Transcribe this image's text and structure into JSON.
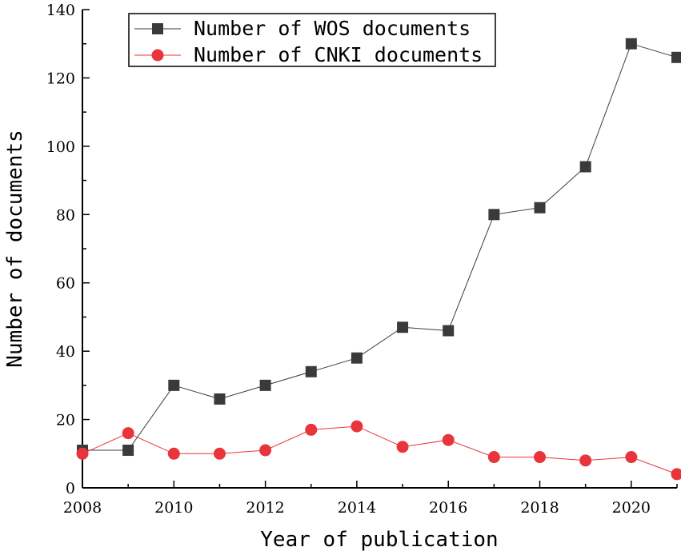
{
  "chart_data": {
    "type": "line",
    "title": "",
    "xlabel": "Year of publication",
    "ylabel": "Number of documents",
    "xlim": [
      2008,
      2021
    ],
    "ylim": [
      0,
      140
    ],
    "x_ticks": [
      2008,
      2010,
      2012,
      2014,
      2016,
      2018,
      2020
    ],
    "y_ticks": [
      0,
      20,
      40,
      60,
      80,
      100,
      120,
      140
    ],
    "grid": false,
    "legend_position": "top-center",
    "x": [
      2008,
      2009,
      2010,
      2011,
      2012,
      2013,
      2014,
      2015,
      2016,
      2017,
      2018,
      2019,
      2020,
      2021
    ],
    "series": [
      {
        "name": "Number of WOS documents",
        "color": "#3a3a3a",
        "marker": "square",
        "values": [
          11,
          11,
          30,
          26,
          30,
          34,
          38,
          47,
          46,
          80,
          82,
          94,
          130,
          126
        ]
      },
      {
        "name": "Number of CNKI documents",
        "color": "#e8353b",
        "marker": "circle",
        "values": [
          10,
          16,
          10,
          10,
          11,
          17,
          18,
          12,
          14,
          9,
          9,
          8,
          9,
          4
        ]
      }
    ]
  }
}
